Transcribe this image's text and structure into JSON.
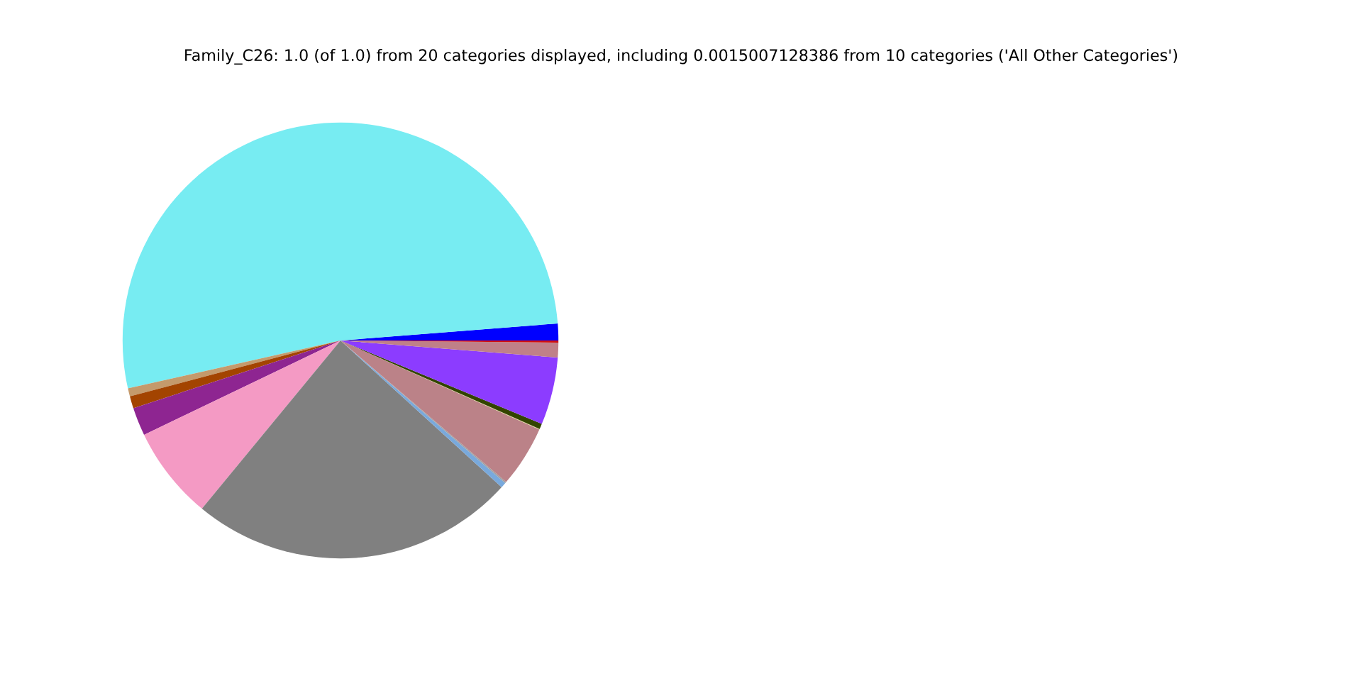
{
  "chart_data": {
    "type": "pie",
    "title": "Family_C26: 1.0 (of 1.0) from 20 categories displayed, including 0.0015007128386 from 10 categories ('All Other Categories')",
    "categories": [
      null,
      null,
      null,
      null,
      null,
      null,
      null,
      null,
      null,
      null,
      null,
      null,
      null,
      null,
      null
    ],
    "values": [
      1.25,
      52.25,
      0.6,
      0.9,
      2.1,
      6.9,
      24.2,
      0.4,
      0.1,
      4.55,
      0.05,
      0.4,
      5.0,
      1.1,
      0.15
    ],
    "colors": [
      "#0000ff",
      "#77ecf2",
      "#c49a6c",
      "#a34400",
      "#8e2591",
      "#f49ac4",
      "#808080",
      "#79a9dc",
      "#a0a0a0",
      "#bb8288",
      "#e0d090",
      "#334400",
      "#8c3cff",
      "#c08088",
      "#d01010"
    ]
  }
}
